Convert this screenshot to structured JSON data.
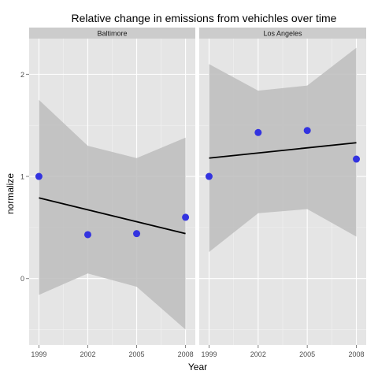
{
  "chart_data": {
    "type": "scatter",
    "title": "Relative change in emissions from vehichles over time",
    "xlabel": "Year",
    "ylabel": "normalize",
    "x_ticks": [
      1999,
      2002,
      2005,
      2008
    ],
    "y_ticks": [
      0,
      1,
      2
    ],
    "xlim": [
      1998.4,
      2008.6
    ],
    "ylim": [
      -0.65,
      2.35
    ],
    "grid": true,
    "legend": "none",
    "point_color": "#3333e0",
    "line_color": "#000000",
    "band_color": "#bdbdbd",
    "panel_bg": "#e5e5e5",
    "strip_bg": "#cccccc",
    "facets": [
      {
        "label": "Baltimore",
        "points": [
          {
            "x": 1999,
            "y": 1.0
          },
          {
            "x": 2002,
            "y": 0.43
          },
          {
            "x": 2005,
            "y": 0.44
          },
          {
            "x": 2008,
            "y": 0.6
          }
        ],
        "fit": {
          "x": [
            1999,
            2008
          ],
          "y": [
            0.79,
            0.44
          ]
        },
        "band": {
          "x": [
            1999,
            2002,
            2005,
            2008
          ],
          "lower": [
            -0.16,
            0.05,
            -0.08,
            -0.5
          ],
          "upper": [
            1.75,
            1.3,
            1.18,
            1.38
          ]
        }
      },
      {
        "label": "Los Angeles",
        "points": [
          {
            "x": 1999,
            "y": 1.0
          },
          {
            "x": 2002,
            "y": 1.43
          },
          {
            "x": 2005,
            "y": 1.45
          },
          {
            "x": 2008,
            "y": 1.17
          }
        ],
        "fit": {
          "x": [
            1999,
            2008
          ],
          "y": [
            1.18,
            1.33
          ]
        },
        "band": {
          "x": [
            1999,
            2002,
            2005,
            2008
          ],
          "lower": [
            0.26,
            0.64,
            0.68,
            0.41
          ],
          "upper": [
            2.1,
            1.84,
            1.89,
            2.26
          ]
        }
      }
    ]
  }
}
